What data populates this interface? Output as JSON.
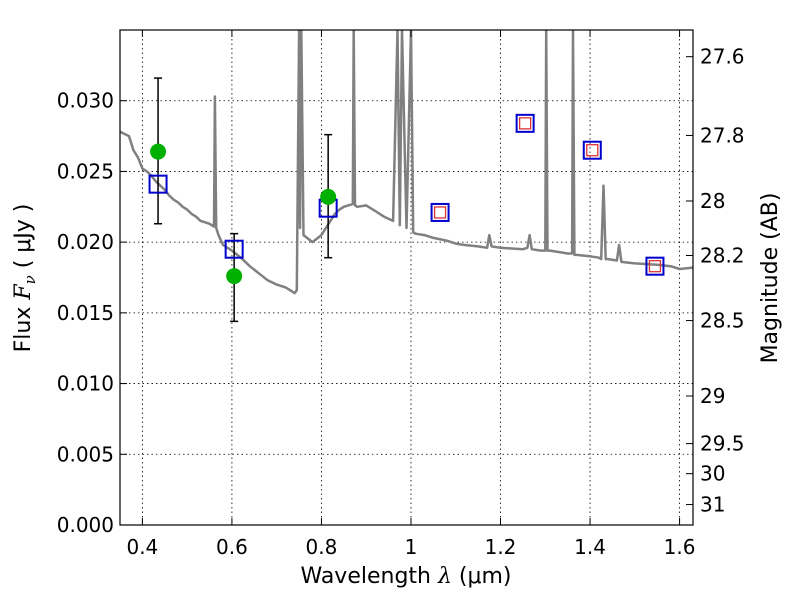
{
  "chart_data": {
    "type": "scatter",
    "xlabel": {
      "prefix": "Wavelength ",
      "symbol": "λ",
      "unit": " (μm)"
    },
    "ylabel": {
      "prefix": "Flux ",
      "symbol": "F",
      "subscript": "ν",
      "unit": " ( μJy )"
    },
    "ylabel_right": "Magnitude (AB)",
    "xlim": [
      0.35,
      1.63
    ],
    "ylim": [
      0.0,
      0.035
    ],
    "grid": true,
    "x_ticks": [
      0.4,
      0.6,
      0.8,
      1.0,
      1.2,
      1.4,
      1.6
    ],
    "x_tick_labels": [
      "0.4",
      "0.6",
      "0.8",
      "1",
      "1.2",
      "1.4",
      "1.6"
    ],
    "y_ticks": [
      0.0,
      0.005,
      0.01,
      0.015,
      0.02,
      0.025,
      0.03
    ],
    "y_tick_labels": [
      "0.000",
      "0.005",
      "0.010",
      "0.015",
      "0.020",
      "0.025",
      "0.030"
    ],
    "right_ticks": [
      {
        "mag": 27.6,
        "label": "27.6"
      },
      {
        "mag": 27.8,
        "label": "27.8"
      },
      {
        "mag": 28.0,
        "label": "28"
      },
      {
        "mag": 28.2,
        "label": "28.2"
      },
      {
        "mag": 28.5,
        "label": "28.5"
      },
      {
        "mag": 29.0,
        "label": "29"
      },
      {
        "mag": 29.5,
        "label": "29.5"
      },
      {
        "mag": 30.0,
        "label": "30"
      },
      {
        "mag": 31.0,
        "label": "31"
      }
    ],
    "series": [
      {
        "kind": "spectrum",
        "color": "#808080",
        "x": [
          0.35,
          0.37,
          0.38,
          0.39,
          0.4,
          0.41,
          0.42,
          0.43,
          0.44,
          0.45,
          0.46,
          0.47,
          0.48,
          0.49,
          0.5,
          0.51,
          0.52,
          0.53,
          0.54,
          0.55,
          0.56,
          0.562,
          0.565,
          0.57,
          0.58,
          0.6,
          0.62,
          0.64,
          0.66,
          0.68,
          0.7,
          0.72,
          0.73,
          0.74,
          0.745,
          0.75,
          0.752,
          0.755,
          0.76,
          0.78,
          0.8,
          0.81,
          0.82,
          0.83,
          0.84,
          0.85,
          0.86,
          0.87,
          0.872,
          0.875,
          0.88,
          0.9,
          0.92,
          0.94,
          0.96,
          0.97,
          0.975,
          0.98,
          0.99,
          1.0,
          1.005,
          1.01,
          1.03,
          1.05,
          1.08,
          1.1,
          1.12,
          1.15,
          1.17,
          1.175,
          1.18,
          1.2,
          1.25,
          1.26,
          1.265,
          1.27,
          1.29,
          1.3,
          1.302,
          1.305,
          1.31,
          1.33,
          1.35,
          1.36,
          1.362,
          1.365,
          1.37,
          1.4,
          1.42,
          1.425,
          1.43,
          1.435,
          1.44,
          1.46,
          1.465,
          1.47,
          1.5,
          1.55,
          1.58,
          1.6,
          1.63
        ],
        "y": [
          0.0278,
          0.0275,
          0.0265,
          0.026,
          0.0252,
          0.025,
          0.0247,
          0.0243,
          0.024,
          0.0237,
          0.0233,
          0.023,
          0.0228,
          0.0225,
          0.0223,
          0.022,
          0.0218,
          0.0215,
          0.0214,
          0.0213,
          0.0211,
          0.0303,
          0.021,
          0.0205,
          0.0198,
          0.0194,
          0.0189,
          0.0183,
          0.0178,
          0.0173,
          0.017,
          0.0168,
          0.0166,
          0.0164,
          0.0166,
          0.035,
          0.021,
          0.035,
          0.0205,
          0.02,
          0.0205,
          0.021,
          0.0215,
          0.022,
          0.0223,
          0.0225,
          0.0226,
          0.0227,
          0.035,
          0.0226,
          0.0225,
          0.0226,
          0.0222,
          0.0218,
          0.0215,
          0.035,
          0.0212,
          0.035,
          0.021,
          0.035,
          0.0207,
          0.0206,
          0.0205,
          0.0203,
          0.0201,
          0.0199,
          0.0198,
          0.0197,
          0.0196,
          0.0205,
          0.0197,
          0.0196,
          0.0195,
          0.0196,
          0.0205,
          0.0195,
          0.0194,
          0.0194,
          0.035,
          0.0194,
          0.0194,
          0.0193,
          0.0192,
          0.0192,
          0.035,
          0.0191,
          0.0191,
          0.019,
          0.0189,
          0.0188,
          0.024,
          0.0188,
          0.0188,
          0.0187,
          0.0198,
          0.0186,
          0.0185,
          0.0184,
          0.0183,
          0.0181,
          0.0182
        ]
      },
      {
        "kind": "green_points",
        "color": "#00b000",
        "x": [
          0.435,
          0.605,
          0.815
        ],
        "y": [
          0.0264,
          0.0176,
          0.0232
        ]
      },
      {
        "kind": "error_bars",
        "color": "#000000",
        "x": [
          0.435,
          0.605,
          0.815
        ],
        "y_low": [
          0.0213,
          0.0144,
          0.0189
        ],
        "y_high": [
          0.0316,
          0.0206,
          0.0276
        ]
      },
      {
        "kind": "blue_squares",
        "color": "#0000cc",
        "x": [
          0.435,
          0.605,
          0.815,
          1.065,
          1.255,
          1.405,
          1.545
        ],
        "y": [
          0.0241,
          0.0195,
          0.0224,
          0.0221,
          0.0284,
          0.0265,
          0.0183
        ]
      },
      {
        "kind": "red_squares",
        "color": "#dd3333",
        "x": [
          1.065,
          1.255,
          1.405,
          1.545
        ],
        "y": [
          0.0221,
          0.0284,
          0.0265,
          0.0183
        ]
      }
    ]
  }
}
